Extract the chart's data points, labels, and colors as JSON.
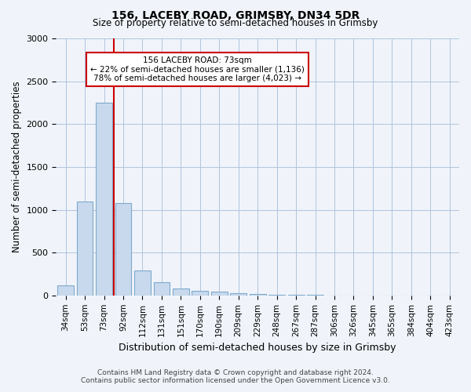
{
  "title": "156, LACEBY ROAD, GRIMSBY, DN34 5DR",
  "subtitle": "Size of property relative to semi-detached houses in Grimsby",
  "xlabel": "Distribution of semi-detached houses by size in Grimsby",
  "ylabel": "Number of semi-detached properties",
  "footer_line1": "Contains HM Land Registry data © Crown copyright and database right 2024.",
  "footer_line2": "Contains public sector information licensed under the Open Government Licence v3.0.",
  "annotation_title": "156 LACEBY ROAD: 73sqm",
  "annotation_line1": "← 22% of semi-detached houses are smaller (1,136)",
  "annotation_line2": "78% of semi-detached houses are larger (4,023) →",
  "property_size": "73sqm",
  "bar_color": "#c9d9ed",
  "bar_edge_color": "#7eaacb",
  "marker_color": "#cc0000",
  "annotation_box_color": "#ffffff",
  "annotation_box_edge": "#cc0000",
  "bins": [
    "34sqm",
    "53sqm",
    "73sqm",
    "92sqm",
    "112sqm",
    "131sqm",
    "151sqm",
    "170sqm",
    "190sqm",
    "209sqm",
    "229sqm",
    "248sqm",
    "267sqm",
    "287sqm",
    "306sqm",
    "326sqm",
    "345sqm",
    "365sqm",
    "384sqm",
    "404sqm",
    "423sqm"
  ],
  "values": [
    120,
    1100,
    2250,
    1075,
    290,
    155,
    85,
    55,
    45,
    30,
    20,
    10,
    5,
    5,
    0,
    0,
    0,
    0,
    0,
    0,
    0
  ],
  "ylim": [
    0,
    3000
  ],
  "yticks": [
    0,
    500,
    1000,
    1500,
    2000,
    2500,
    3000
  ],
  "property_bin_index": 2,
  "background_color": "#f0f4fa"
}
